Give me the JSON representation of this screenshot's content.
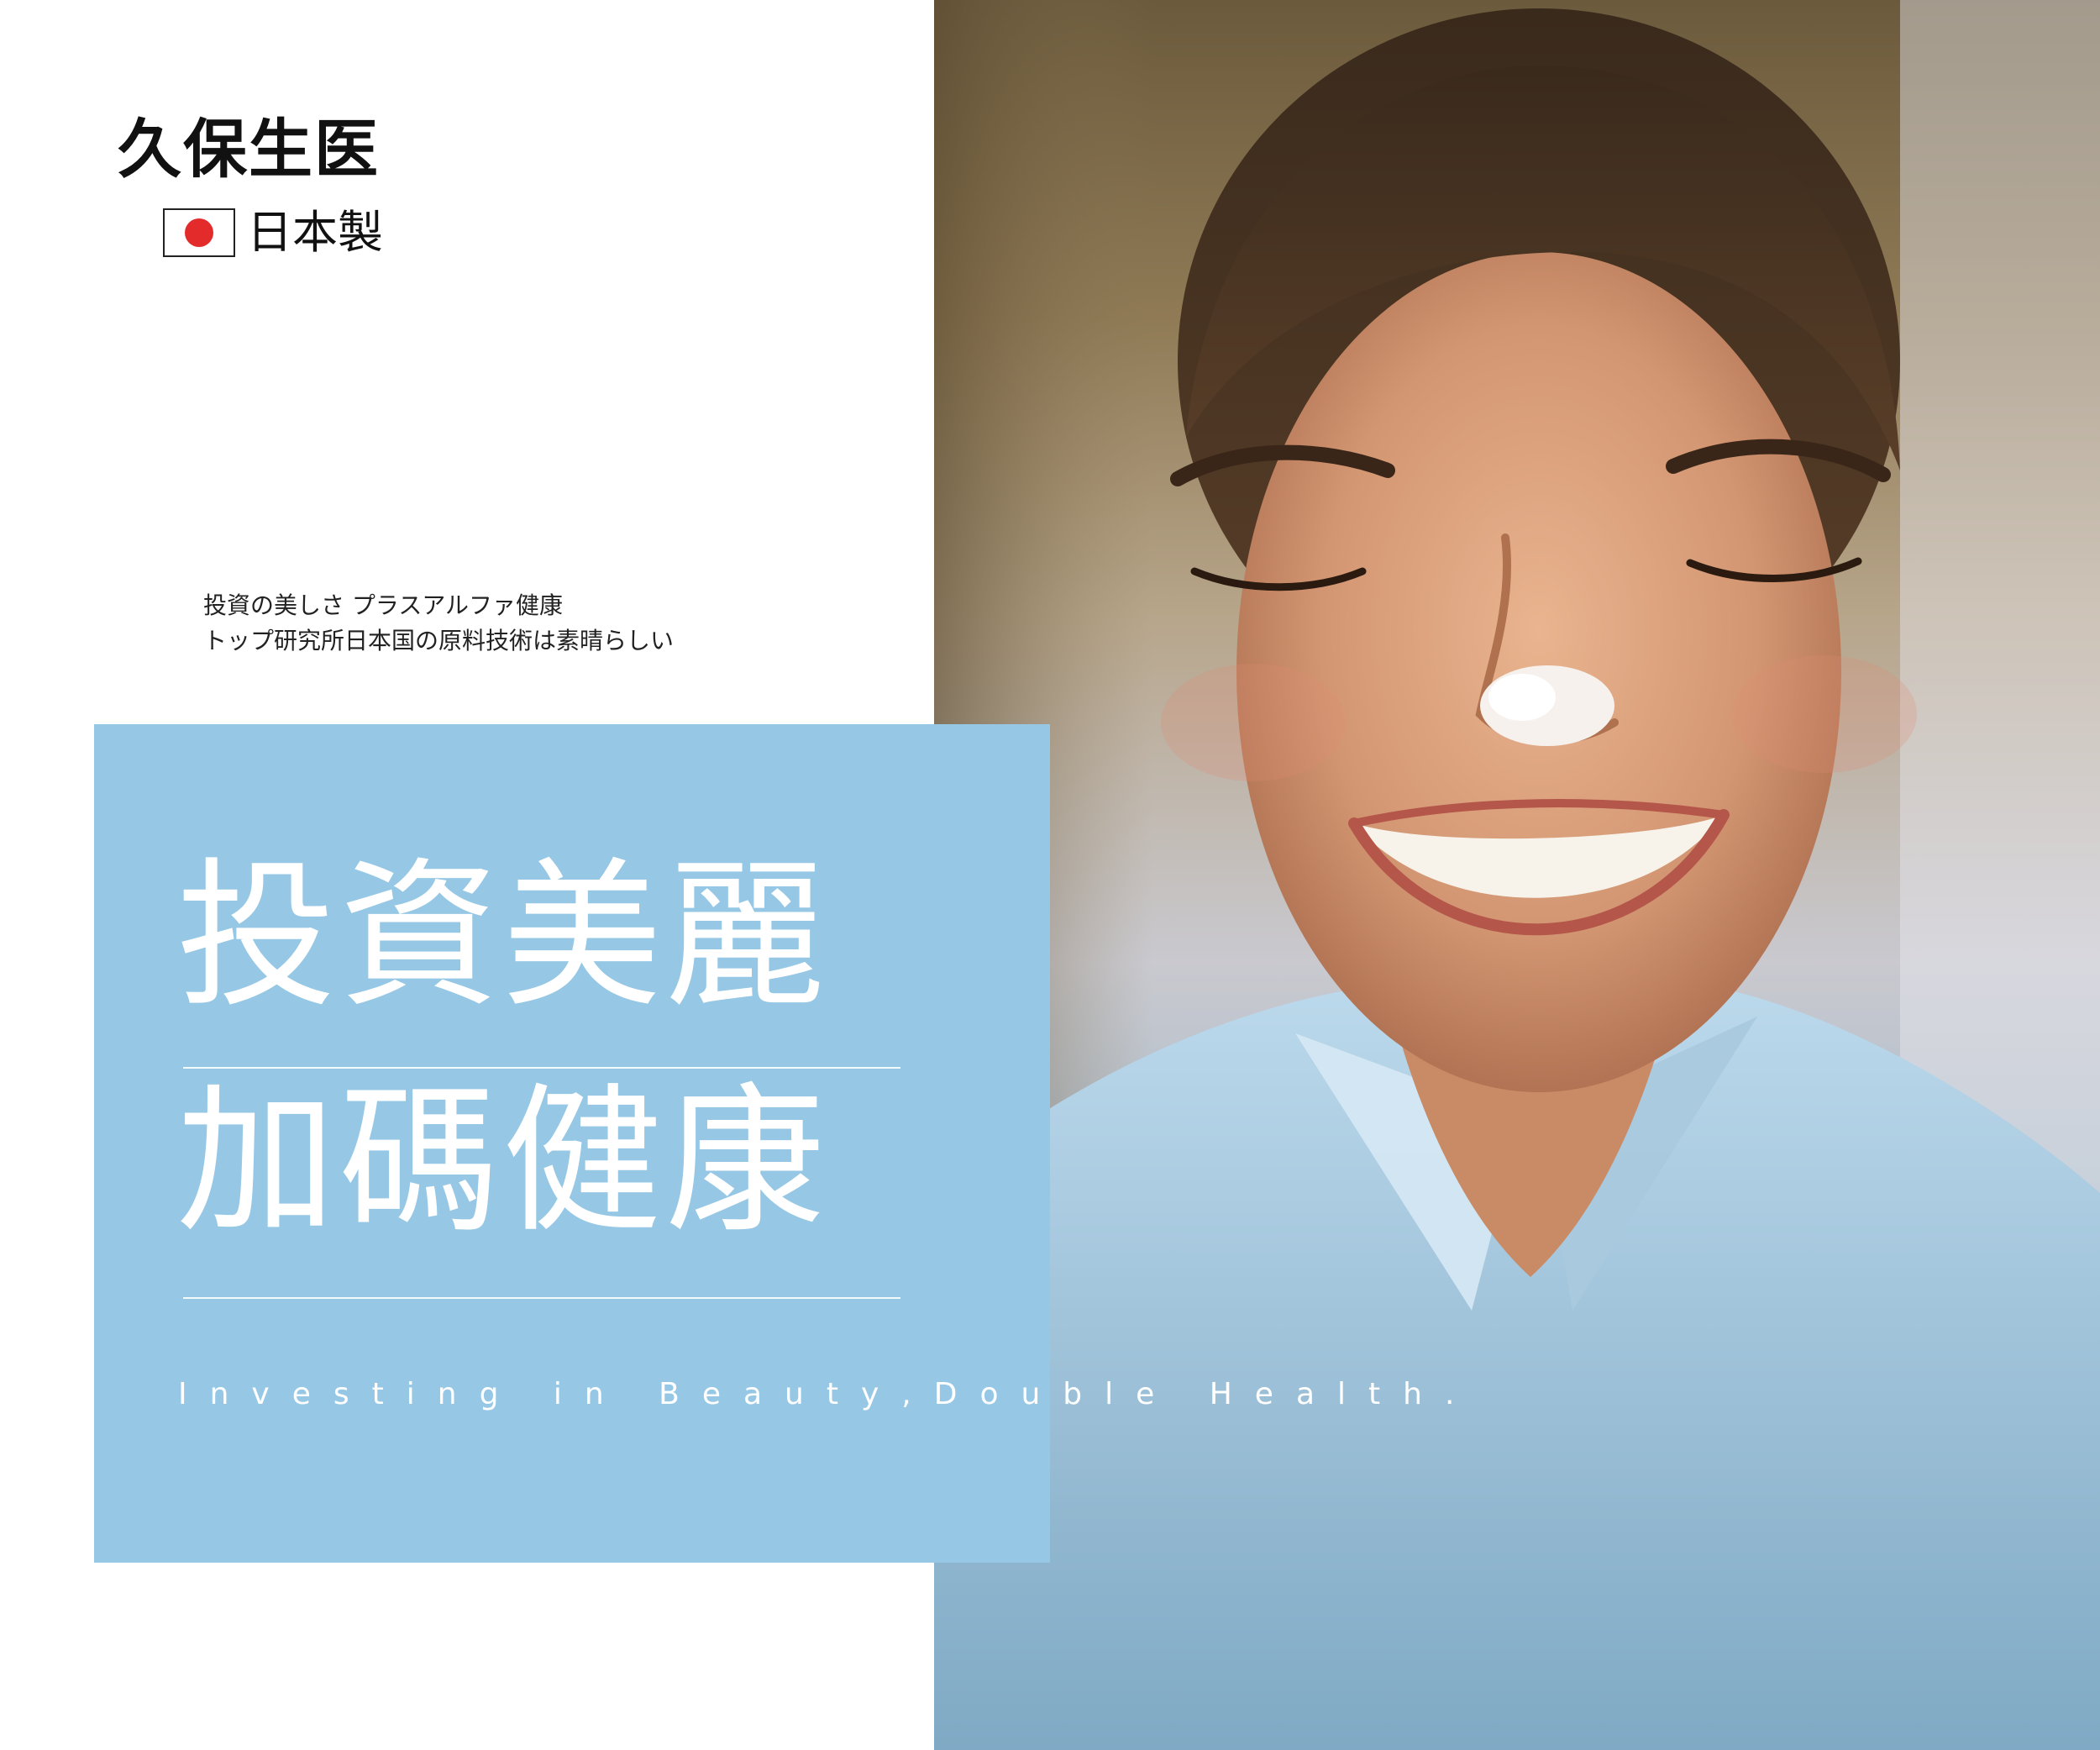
{
  "brand": {
    "name": "久保生医",
    "origin_label": "日本製",
    "flag_icon": "japan-flag-icon",
    "flag_color": "#e32b2b"
  },
  "tagline": {
    "line1": "投資の美しさ プラスアルファ健康",
    "line2": "トップ研究所日本国の原料技術は素晴らしい"
  },
  "headline": {
    "line1": "投資美麗",
    "line2": "加碼健康",
    "english": "Investing in Beauty,Double Health."
  },
  "colors": {
    "box_blue": "#96c8e6",
    "text_white": "#ffffff",
    "text_dark": "#111111"
  },
  "photo": {
    "subject": "smiling-woman-photo"
  }
}
